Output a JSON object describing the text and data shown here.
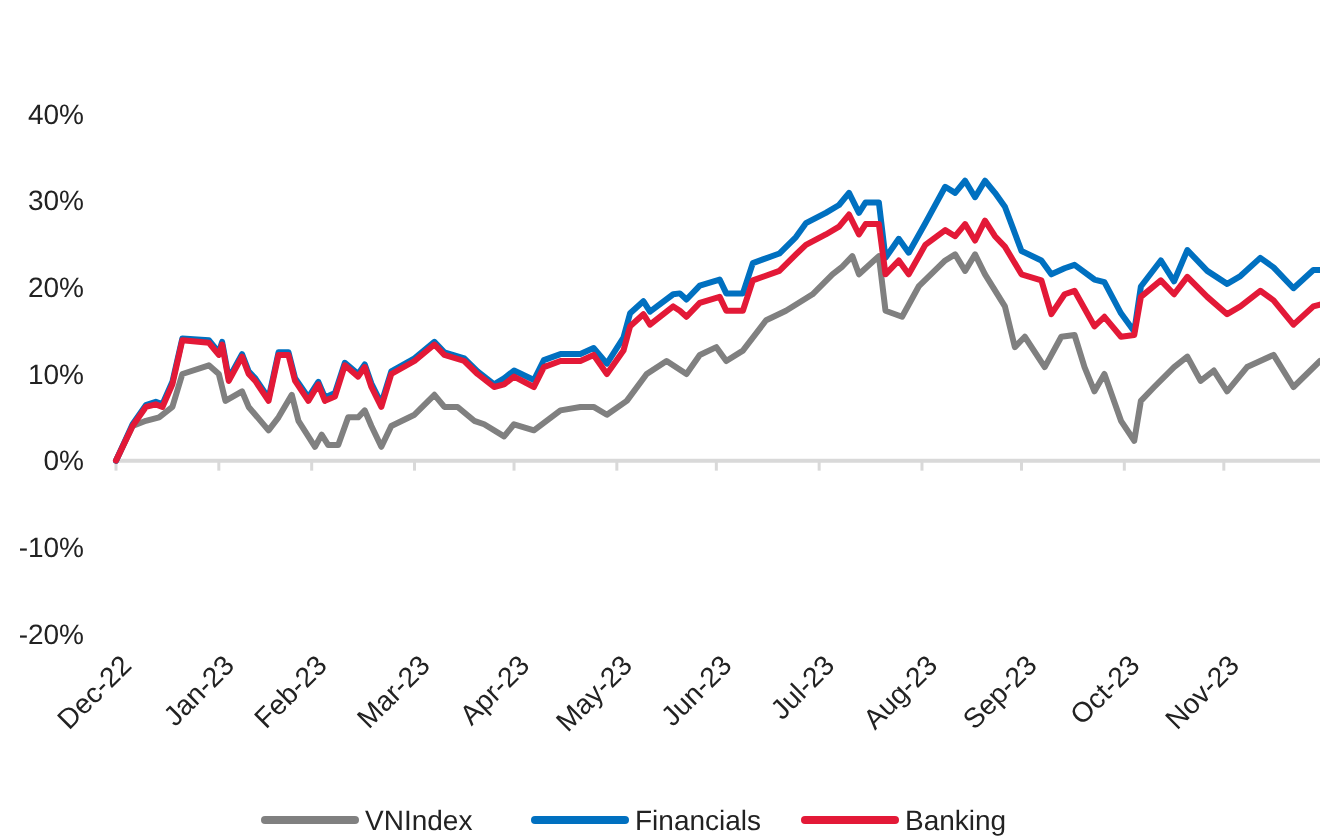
{
  "chart_data": {
    "type": "line",
    "legend": "bottom",
    "xlim": [
      "2022-12-31",
      "2023-12-29"
    ],
    "ylim": [
      -20,
      40
    ],
    "yticks": [
      {
        "value": -20,
        "label": "-20%"
      },
      {
        "value": -10,
        "label": "-10%"
      },
      {
        "value": 0,
        "label": "0%"
      },
      {
        "value": 10,
        "label": "10%"
      },
      {
        "value": 20,
        "label": "20%"
      },
      {
        "value": 30,
        "label": "30%"
      },
      {
        "value": 40,
        "label": "40%"
      }
    ],
    "xticks": [
      {
        "value": "2022-12-31",
        "label": "Dec-22"
      },
      {
        "value": "2023-01-31",
        "label": "Jan-23"
      },
      {
        "value": "2023-02-28",
        "label": "Feb-23"
      },
      {
        "value": "2023-03-31",
        "label": "Mar-23"
      },
      {
        "value": "2023-04-30",
        "label": "Apr-23"
      },
      {
        "value": "2023-05-31",
        "label": "May-23"
      },
      {
        "value": "2023-06-30",
        "label": "Jun-23"
      },
      {
        "value": "2023-07-31",
        "label": "Jul-23"
      },
      {
        "value": "2023-08-31",
        "label": "Aug-23"
      },
      {
        "value": "2023-09-30",
        "label": "Sep-23"
      },
      {
        "value": "2023-10-31",
        "label": "Oct-23"
      },
      {
        "value": "2023-11-30",
        "label": "Nov-23"
      }
    ],
    "series": [
      {
        "name": "VNIndex",
        "color": "#808080",
        "x": [
          "2022-12-31",
          "2023-01-05",
          "2023-01-09",
          "2023-01-13",
          "2023-01-17",
          "2023-01-20",
          "2023-01-28",
          "2023-01-31",
          "2023-02-02",
          "2023-02-07",
          "2023-02-09",
          "2023-02-15",
          "2023-02-18",
          "2023-02-22",
          "2023-02-24",
          "2023-03-01",
          "2023-03-03",
          "2023-03-05",
          "2023-03-08",
          "2023-03-11",
          "2023-03-14",
          "2023-03-16",
          "2023-03-18",
          "2023-03-21",
          "2023-03-24",
          "2023-03-31",
          "2023-04-06",
          "2023-04-09",
          "2023-04-13",
          "2023-04-18",
          "2023-04-21",
          "2023-04-27",
          "2023-04-30",
          "2023-05-06",
          "2023-05-14",
          "2023-05-20",
          "2023-05-24",
          "2023-05-28",
          "2023-06-03",
          "2023-06-09",
          "2023-06-15",
          "2023-06-21",
          "2023-06-25",
          "2023-06-30",
          "2023-07-03",
          "2023-07-08",
          "2023-07-15",
          "2023-07-21",
          "2023-07-29",
          "2023-08-04",
          "2023-08-07",
          "2023-08-10",
          "2023-08-12",
          "2023-08-18",
          "2023-08-20",
          "2023-08-25",
          "2023-08-30",
          "2023-09-07",
          "2023-09-10",
          "2023-09-13",
          "2023-09-16",
          "2023-09-19",
          "2023-09-25",
          "2023-09-28",
          "2023-10-01",
          "2023-10-07",
          "2023-10-12",
          "2023-10-16",
          "2023-10-19",
          "2023-10-22",
          "2023-10-25",
          "2023-10-30",
          "2023-11-03",
          "2023-11-05",
          "2023-11-09",
          "2023-11-15",
          "2023-11-19",
          "2023-11-23",
          "2023-11-27",
          "2023-12-01",
          "2023-12-07",
          "2023-12-15",
          "2023-12-21",
          "2023-12-29"
        ],
        "values": [
          0,
          4,
          4.6,
          5,
          6.2,
          10,
          11,
          10,
          6.9,
          8,
          6.2,
          3.5,
          5,
          7.6,
          4.6,
          1.6,
          3,
          1.8,
          1.8,
          5,
          5,
          5.8,
          4,
          1.6,
          4,
          5.3,
          7.6,
          6.2,
          6.2,
          4.6,
          4.2,
          2.8,
          4.2,
          3.5,
          5.8,
          6.2,
          6.2,
          5.3,
          6.9,
          10,
          11.5,
          10,
          12.2,
          13.1,
          11.5,
          12.7,
          16.2,
          17.3,
          19.2,
          21.5,
          22.4,
          23.6,
          21.5,
          23.6,
          17.3,
          16.6,
          20.1,
          23.1,
          23.8,
          21.9,
          23.8,
          21.5,
          17.8,
          13.1,
          14.3,
          10.8,
          14.3,
          14.5,
          10.8,
          8,
          10,
          4.6,
          2.3,
          6.9,
          8.5,
          10.8,
          12,
          9.2,
          10.4,
          8,
          10.8,
          12.2,
          8.5,
          11.5
        ]
      },
      {
        "name": "Financials",
        "color": "#0070c0",
        "x": [
          "2022-12-31",
          "2023-01-05",
          "2023-01-09",
          "2023-01-12",
          "2023-01-14",
          "2023-01-17",
          "2023-01-20",
          "2023-01-28",
          "2023-01-31",
          "2023-02-01",
          "2023-02-03",
          "2023-02-07",
          "2023-02-09",
          "2023-02-11",
          "2023-02-15",
          "2023-02-18",
          "2023-02-21",
          "2023-02-23",
          "2023-02-27",
          "2023-03-02",
          "2023-03-04",
          "2023-03-07",
          "2023-03-10",
          "2023-03-14",
          "2023-03-16",
          "2023-03-18",
          "2023-03-21",
          "2023-03-24",
          "2023-03-31",
          "2023-04-06",
          "2023-04-09",
          "2023-04-15",
          "2023-04-19",
          "2023-04-24",
          "2023-04-27",
          "2023-04-30",
          "2023-05-06",
          "2023-05-09",
          "2023-05-14",
          "2023-05-20",
          "2023-05-24",
          "2023-05-28",
          "2023-06-02",
          "2023-06-04",
          "2023-06-08",
          "2023-06-10",
          "2023-06-17",
          "2023-06-19",
          "2023-06-21",
          "2023-06-25",
          "2023-07-01",
          "2023-07-03",
          "2023-07-08",
          "2023-07-11",
          "2023-07-19",
          "2023-07-24",
          "2023-07-27",
          "2023-08-02",
          "2023-08-06",
          "2023-08-09",
          "2023-08-12",
          "2023-08-14",
          "2023-08-18",
          "2023-08-20",
          "2023-08-24",
          "2023-08-27",
          "2023-09-01",
          "2023-09-07",
          "2023-09-10",
          "2023-09-13",
          "2023-09-16",
          "2023-09-19",
          "2023-09-22",
          "2023-09-25",
          "2023-09-30",
          "2023-10-06",
          "2023-10-09",
          "2023-10-13",
          "2023-10-16",
          "2023-10-22",
          "2023-10-25",
          "2023-10-30",
          "2023-11-03",
          "2023-11-05",
          "2023-11-11",
          "2023-11-15",
          "2023-11-19",
          "2023-11-25",
          "2023-12-01",
          "2023-12-05",
          "2023-12-11",
          "2023-12-15",
          "2023-12-21",
          "2023-12-27",
          "2023-12-29"
        ],
        "values": [
          0,
          4.2,
          6.4,
          6.8,
          6.5,
          9.1,
          14.1,
          13.9,
          12.5,
          13.7,
          9.5,
          12.3,
          10.3,
          9.5,
          7.2,
          12.5,
          12.5,
          9.5,
          7.3,
          9.1,
          7.3,
          7.8,
          11.3,
          10,
          11.1,
          8.9,
          6.6,
          10.3,
          11.8,
          13.7,
          12.5,
          11.8,
          10.3,
          8.8,
          9.5,
          10.4,
          9.3,
          11.6,
          12.3,
          12.3,
          13,
          11.2,
          14.2,
          17,
          18.4,
          17.2,
          19.2,
          19.3,
          18.6,
          20.2,
          20.9,
          19.3,
          19.3,
          22.8,
          23.9,
          25.8,
          27.4,
          28.6,
          29.5,
          30.9,
          28.6,
          29.8,
          29.8,
          23.4,
          25.6,
          24,
          27.4,
          31.6,
          30.9,
          32.3,
          30.4,
          32.3,
          30.9,
          29.3,
          24.2,
          23.1,
          21.5,
          22.2,
          22.6,
          20.9,
          20.6,
          17,
          14.9,
          20.1,
          23.1,
          20.7,
          24.3,
          21.9,
          20.4,
          21.3,
          23.4,
          22.3,
          19.9,
          22,
          22
        ]
      },
      {
        "name": "Banking",
        "color": "#e31937",
        "x": [
          "2022-12-31",
          "2023-01-05",
          "2023-01-09",
          "2023-01-12",
          "2023-01-14",
          "2023-01-17",
          "2023-01-20",
          "2023-01-28",
          "2023-01-31",
          "2023-02-01",
          "2023-02-03",
          "2023-02-07",
          "2023-02-09",
          "2023-02-11",
          "2023-02-15",
          "2023-02-18",
          "2023-02-21",
          "2023-02-23",
          "2023-02-27",
          "2023-03-02",
          "2023-03-04",
          "2023-03-07",
          "2023-03-10",
          "2023-03-14",
          "2023-03-16",
          "2023-03-18",
          "2023-03-21",
          "2023-03-24",
          "2023-03-31",
          "2023-04-06",
          "2023-04-09",
          "2023-04-15",
          "2023-04-19",
          "2023-04-24",
          "2023-04-27",
          "2023-04-30",
          "2023-05-06",
          "2023-05-09",
          "2023-05-14",
          "2023-05-20",
          "2023-05-24",
          "2023-05-28",
          "2023-06-02",
          "2023-06-04",
          "2023-06-08",
          "2023-06-10",
          "2023-06-17",
          "2023-06-19",
          "2023-06-21",
          "2023-06-25",
          "2023-07-01",
          "2023-07-03",
          "2023-07-08",
          "2023-07-11",
          "2023-07-19",
          "2023-07-24",
          "2023-07-27",
          "2023-08-02",
          "2023-08-06",
          "2023-08-09",
          "2023-08-12",
          "2023-08-14",
          "2023-08-18",
          "2023-08-20",
          "2023-08-24",
          "2023-08-27",
          "2023-09-01",
          "2023-09-07",
          "2023-09-10",
          "2023-09-13",
          "2023-09-16",
          "2023-09-19",
          "2023-09-22",
          "2023-09-25",
          "2023-09-30",
          "2023-10-06",
          "2023-10-09",
          "2023-10-13",
          "2023-10-16",
          "2023-10-22",
          "2023-10-25",
          "2023-10-30",
          "2023-11-03",
          "2023-11-05",
          "2023-11-11",
          "2023-11-15",
          "2023-11-19",
          "2023-11-25",
          "2023-12-01",
          "2023-12-05",
          "2023-12-11",
          "2023-12-15",
          "2023-12-21",
          "2023-12-27",
          "2023-12-29"
        ],
        "values": [
          0,
          4,
          6.2,
          6.5,
          6.2,
          8.8,
          13.9,
          13.6,
          12.2,
          13.4,
          9.2,
          12,
          10,
          9.2,
          6.9,
          12.2,
          12.2,
          9.2,
          6.9,
          8.8,
          6.9,
          7.4,
          11,
          9.7,
          10.8,
          8.5,
          6.2,
          10,
          11.5,
          13.4,
          12.2,
          11.5,
          10,
          8.5,
          8.8,
          9.7,
          8.5,
          10.8,
          11.5,
          11.5,
          12.2,
          10,
          12.7,
          15.5,
          16.9,
          15.7,
          17.8,
          17.3,
          16.6,
          18.2,
          18.9,
          17.3,
          17.3,
          20.8,
          21.9,
          23.8,
          24.9,
          26.1,
          27,
          28.4,
          26.1,
          27.3,
          27.3,
          21.5,
          23.1,
          21.5,
          24.9,
          26.6,
          25.9,
          27.3,
          25.4,
          27.7,
          25.9,
          24.7,
          21.5,
          20.8,
          16.9,
          19.2,
          19.6,
          15.5,
          16.6,
          14.3,
          14.5,
          18.9,
          20.8,
          19.2,
          21.2,
          18.9,
          16.9,
          17.8,
          19.6,
          18.5,
          15.7,
          17.8,
          18
        ]
      }
    ]
  }
}
